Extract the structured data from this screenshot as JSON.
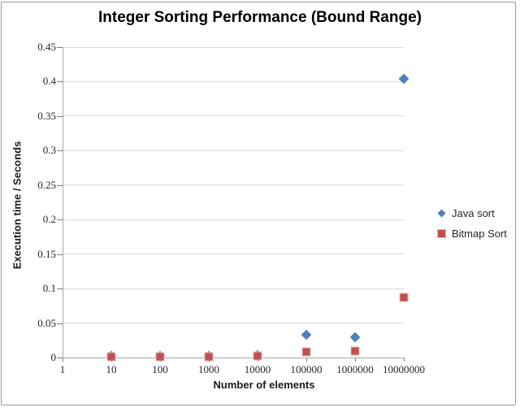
{
  "chart_data": {
    "type": "scatter",
    "title": "Integer Sorting Performance (Bound Range)",
    "xlabel": "Number of elements",
    "ylabel": "Execution time / Seconds",
    "x_scale": "log10",
    "x_range_decades": 7,
    "x_ticks": [
      1,
      10,
      100,
      1000,
      10000,
      100000,
      1000000,
      10000000
    ],
    "x_tick_labels": [
      "1",
      "10",
      "100",
      "1000",
      "10000",
      "100000",
      "1000000",
      "10000000"
    ],
    "ylim": [
      0,
      0.45
    ],
    "y_ticks": [
      0,
      0.05,
      0.1,
      0.15,
      0.2,
      0.25,
      0.3,
      0.35,
      0.4,
      0.45
    ],
    "y_tick_labels": [
      "0",
      "0.05",
      "0.1",
      "0.15",
      "0.2",
      "0.25",
      "0.3",
      "0.35",
      "0.4",
      "0.45"
    ],
    "grid": "horizontal-only",
    "legend_position": "right",
    "colors": {
      "grid": "#D9D9D9",
      "axis": "#A6A6A6",
      "tick": "#7F7F7F",
      "tick_text": "#262626",
      "title_text": "#000000",
      "chart_border": "#9A9A9A"
    },
    "series": [
      {
        "name": "Java sort",
        "marker": "diamond",
        "color": "#4F81BD",
        "edge": "#4F81BD",
        "x": [
          10,
          100,
          1000,
          10000,
          100000,
          1000000,
          10000000
        ],
        "y": [
          0.002,
          0.002,
          0.002,
          0.004,
          0.033,
          0.03,
          0.404
        ]
      },
      {
        "name": "Bitmap Sort",
        "marker": "square",
        "color": "#C0504D",
        "edge": "#E6B8B7",
        "x": [
          10,
          100,
          1000,
          10000,
          100000,
          1000000,
          10000000
        ],
        "y": [
          0.001,
          0.001,
          0.001,
          0.002,
          0.008,
          0.01,
          0.087
        ]
      }
    ]
  }
}
